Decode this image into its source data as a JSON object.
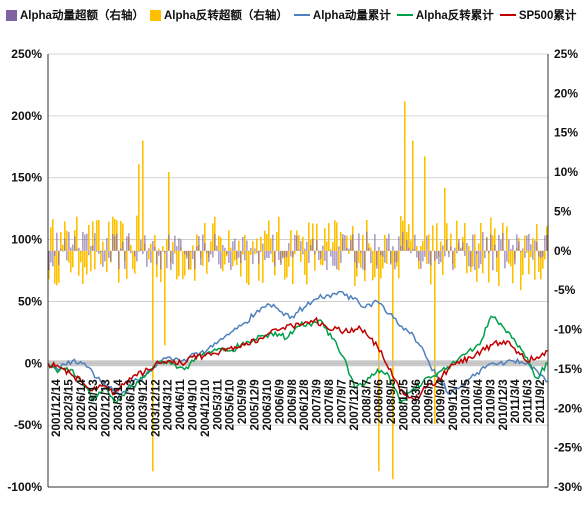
{
  "chart_data": {
    "type": "line",
    "legend": [
      {
        "label": "Alpha动量超额（右轴）",
        "kind": "bar",
        "color": "#8064A2"
      },
      {
        "label": "Alpha反转超额（右轴）",
        "kind": "bar",
        "color": "#FFC000"
      },
      {
        "label": "Alpha动量累计",
        "kind": "line",
        "color": "#4F81BD"
      },
      {
        "label": "Alpha反转累计",
        "kind": "line",
        "color": "#00A04A"
      },
      {
        "label": "SP500累计",
        "kind": "line",
        "color": "#C00000"
      }
    ],
    "legend_position": "top",
    "left_axis": {
      "ticks": [
        "250%",
        "200%",
        "150%",
        "100%",
        "50%",
        "0%",
        "-50%",
        "-100%"
      ],
      "values": [
        2.5,
        2.0,
        1.5,
        1.0,
        0.5,
        0.0,
        -0.5,
        -1.0
      ],
      "ylim": [
        -1.0,
        2.5
      ]
    },
    "right_axis": {
      "ticks": [
        "25%",
        "20%",
        "15%",
        "10%",
        "5%",
        "0%",
        "-5%",
        "-10%",
        "-15%",
        "-20%",
        "-25%",
        "-30%"
      ],
      "values": [
        0.25,
        0.2,
        0.15,
        0.1,
        0.05,
        0.0,
        -0.05,
        -0.1,
        -0.15,
        -0.2,
        -0.25,
        -0.3
      ],
      "ylim": [
        -0.3,
        0.25
      ]
    },
    "x_tick_labels": [
      "2001/12/14",
      "2002/3/15",
      "2002/6/14",
      "2002/9/13",
      "2002/12/13",
      "2003/3/14",
      "2003/6/13",
      "2003/9/12",
      "2003/12/12",
      "2004/3/12",
      "2004/6/11",
      "2004/9/10",
      "2004/12/10",
      "2005/3/11",
      "2005/6/10",
      "2005/9/9",
      "2005/12/9",
      "2006/3/10",
      "2006/6/9",
      "2006/9/8",
      "2006/12/8",
      "2007/3/9",
      "2007/6/8",
      "2007/9/7",
      "2007/12/7",
      "2008/3/7",
      "2008/6/6",
      "2008/9/5",
      "2008/12/5",
      "2009/3/6",
      "2009/6/5",
      "2009/9/4",
      "2009/12/4",
      "2010/3/5",
      "2010/6/4",
      "2010/9/3",
      "2010/12/3",
      "2011/3/4",
      "2011/6/3",
      "2011/9/2"
    ],
    "grid": "horizontal",
    "series": [
      {
        "name": "Alpha动量累计",
        "axis": "left",
        "values": [
          0.0,
          -0.04,
          0.02,
          0.0,
          -0.12,
          -0.2,
          -0.25,
          -0.15,
          -0.1,
          0.0,
          0.05,
          0.02,
          0.08,
          0.1,
          0.18,
          0.25,
          0.32,
          0.4,
          0.48,
          0.42,
          0.38,
          0.45,
          0.52,
          0.55,
          0.58,
          0.52,
          0.45,
          0.5,
          0.4,
          0.3,
          0.22,
          0.05,
          -0.12,
          -0.25,
          -0.18,
          -0.1,
          -0.02,
          0.0,
          0.02,
          0.0,
          -0.05,
          -0.15
        ]
      },
      {
        "name": "Alpha反转累计",
        "axis": "left",
        "values": [
          0.0,
          -0.06,
          -0.05,
          -0.15,
          -0.3,
          -0.2,
          -0.32,
          -0.2,
          -0.15,
          -0.05,
          0.02,
          0.0,
          -0.05,
          0.05,
          0.08,
          0.12,
          0.1,
          0.15,
          0.18,
          0.22,
          0.25,
          0.2,
          0.3,
          0.32,
          0.35,
          0.2,
          0.05,
          -0.2,
          -0.15,
          -0.05,
          -0.1,
          -0.32,
          -0.22,
          -0.15,
          -0.1,
          -0.05,
          0.02,
          0.1,
          0.15,
          0.38,
          0.3,
          0.2,
          0.05,
          -0.12,
          0.0
        ]
      },
      {
        "name": "SP500累计",
        "axis": "left",
        "values": [
          0.0,
          -0.03,
          -0.08,
          -0.15,
          -0.22,
          -0.18,
          -0.25,
          -0.15,
          -0.1,
          -0.05,
          0.0,
          0.02,
          0.0,
          0.05,
          0.06,
          0.08,
          0.1,
          0.12,
          0.15,
          0.2,
          0.25,
          0.28,
          0.3,
          0.32,
          0.35,
          0.3,
          0.28,
          0.25,
          0.3,
          0.2,
          0.1,
          -0.1,
          -0.25,
          -0.3,
          -0.2,
          -0.15,
          -0.05,
          0.0,
          0.05,
          0.1,
          0.15,
          0.18,
          0.12,
          0.02,
          0.05,
          0.1
        ]
      },
      {
        "name": "Alpha动量超额（右轴）",
        "axis": "right",
        "type": "bar",
        "range": [
          -0.03,
          0.03
        ]
      },
      {
        "name": "Alpha反转超额（右轴）",
        "axis": "right",
        "type": "bar",
        "range": [
          -0.29,
          0.19
        ]
      }
    ]
  }
}
